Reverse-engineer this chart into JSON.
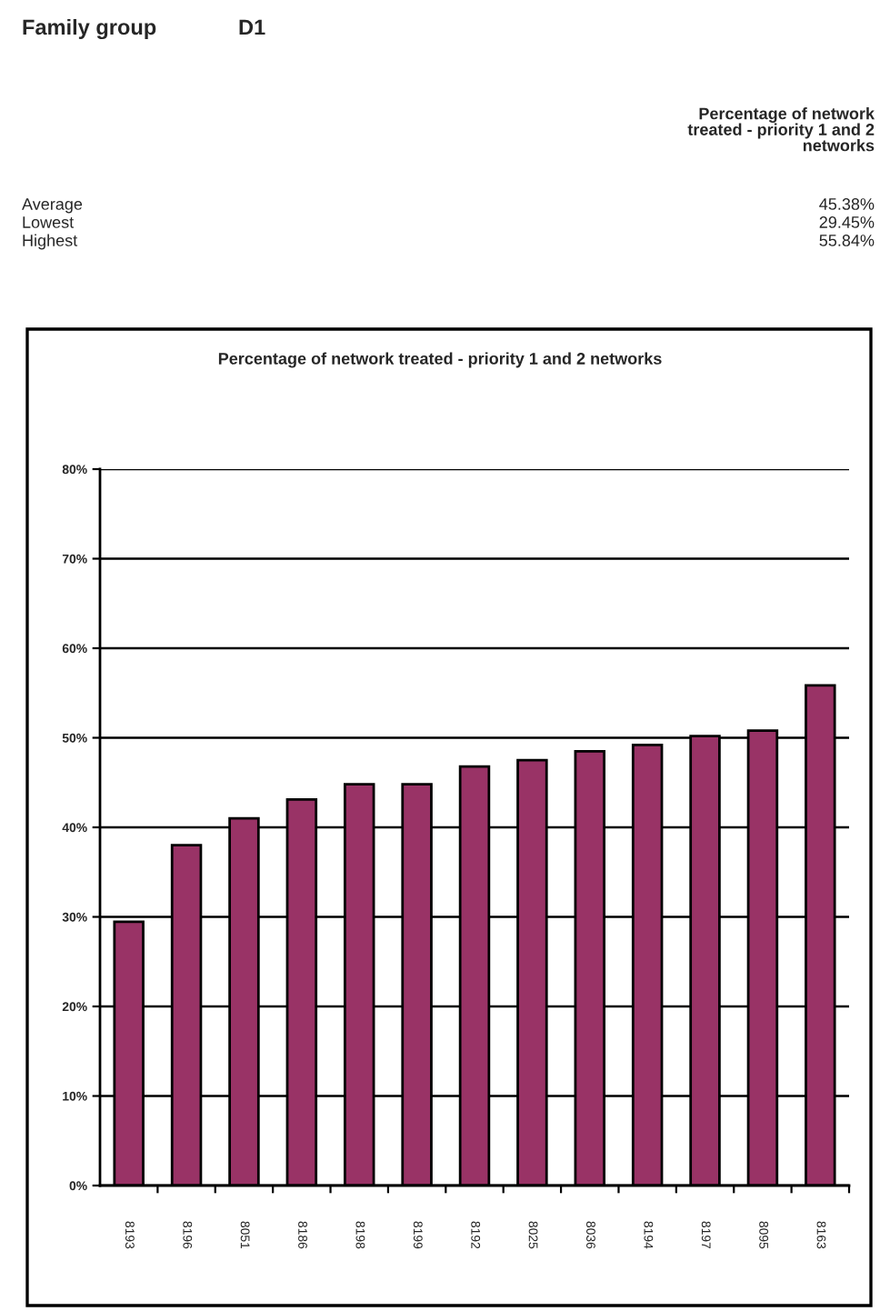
{
  "chart_data": {
    "type": "bar",
    "title": "Percentage of network treated - priority 1 and 2 networks",
    "annotations": [
      "Family group",
      "D1",
      "Percentage of network\ntreated - priority 1 and 2\nnetworks",
      "Average",
      "45.38%",
      "Lowest",
      "29.45%",
      "Highest",
      "55.84%"
    ],
    "categories": [
      "8193",
      "8196",
      "8051",
      "8186",
      "8198",
      "8199",
      "8192",
      "8025",
      "8036",
      "8194",
      "8197",
      "8095",
      "8163"
    ],
    "values": [
      29.45,
      38.0,
      41.0,
      43.1,
      44.8,
      44.8,
      46.8,
      47.5,
      48.5,
      49.2,
      50.2,
      50.8,
      55.84
    ],
    "color": "#993366",
    "ylim": [
      0,
      80
    ],
    "yticks": [
      {
        "value": 0,
        "label": "0%"
      },
      {
        "value": 10,
        "label": "10%"
      },
      {
        "value": 20,
        "label": "20%"
      },
      {
        "value": 30,
        "label": "30%"
      },
      {
        "value": 40,
        "label": "40%"
      },
      {
        "value": 50,
        "label": "50%"
      },
      {
        "value": 60,
        "label": "60%"
      },
      {
        "value": 70,
        "label": "70%"
      },
      {
        "value": 80,
        "label": "80%"
      }
    ],
    "grid": "y"
  }
}
